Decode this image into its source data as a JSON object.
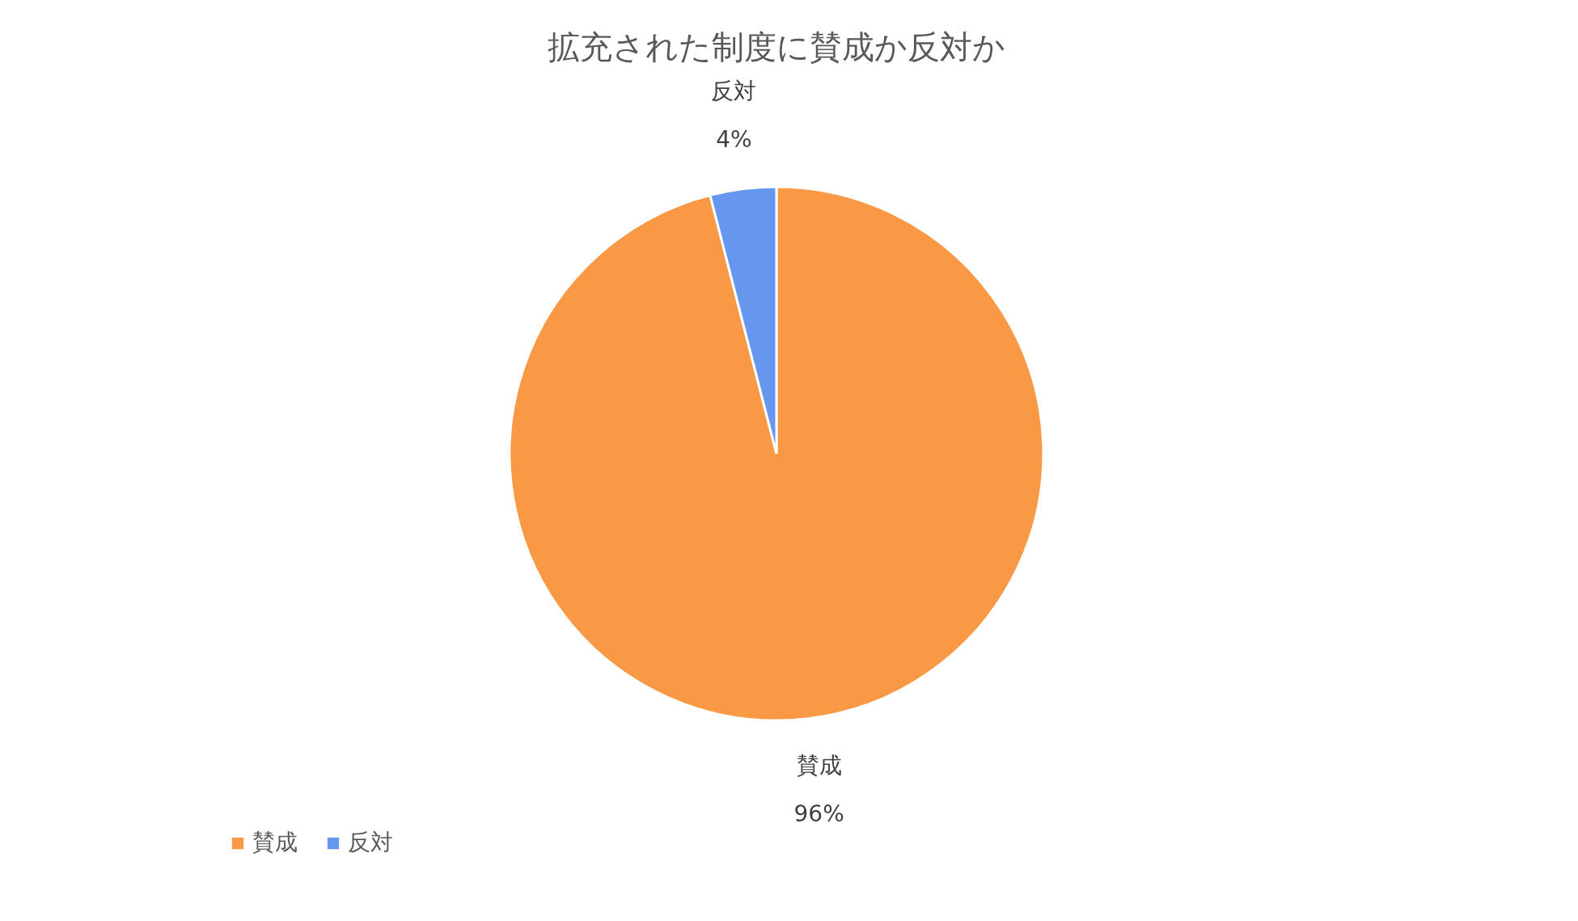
{
  "chart_data": {
    "type": "pie",
    "title": "拡充された制度に賛成か反対か",
    "categories": [
      "賛成",
      "反対"
    ],
    "values": [
      96,
      4
    ],
    "colors": [
      "#f99845",
      "#6597ee"
    ],
    "value_labels": [
      "96%",
      "4%"
    ],
    "legend": "bottom"
  }
}
